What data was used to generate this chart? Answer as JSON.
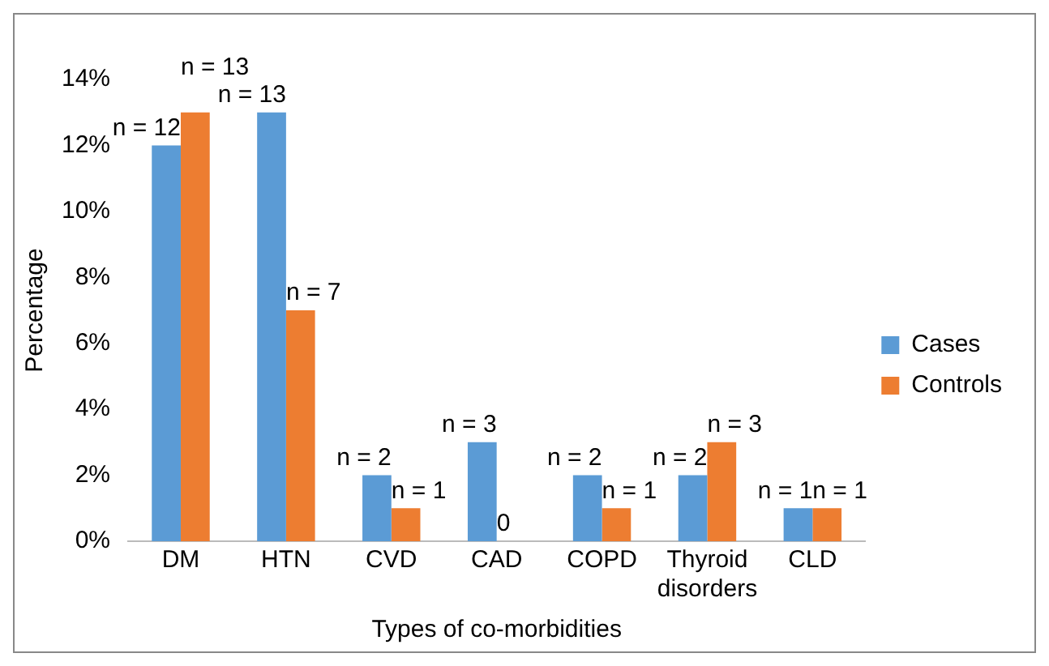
{
  "chart_data": {
    "type": "bar",
    "xlabel": "Types of co-morbidities",
    "ylabel": "Percentage",
    "categories": [
      "DM",
      "HTN",
      "CVD",
      "CAD",
      "COPD",
      "Thyroid disorders",
      "CLD"
    ],
    "series": [
      {
        "name": "Cases",
        "color": "#5b9bd5",
        "values": [
          12,
          13,
          2,
          3,
          2,
          2,
          1
        ],
        "value_labels": [
          "n = 12",
          "n = 13",
          "n = 2",
          "n = 3",
          "n = 2",
          "n = 2",
          "n = 1"
        ]
      },
      {
        "name": "Controls",
        "color": "#ed7d31",
        "values": [
          13,
          7,
          1,
          0,
          1,
          3,
          1
        ],
        "value_labels": [
          "n = 13",
          "n = 7",
          "n = 1",
          "0",
          "n = 1",
          "n = 3",
          "n = 1"
        ]
      }
    ],
    "ylim": [
      0,
      14
    ],
    "yticks": [
      {
        "value": 0,
        "label": "0%"
      },
      {
        "value": 2,
        "label": "2%"
      },
      {
        "value": 4,
        "label": "4%"
      },
      {
        "value": 6,
        "label": "6%"
      },
      {
        "value": 8,
        "label": "8%"
      },
      {
        "value": 10,
        "label": "10%"
      },
      {
        "value": 12,
        "label": "12%"
      },
      {
        "value": 14,
        "label": "14%"
      }
    ],
    "grid": false,
    "legend": "right"
  }
}
